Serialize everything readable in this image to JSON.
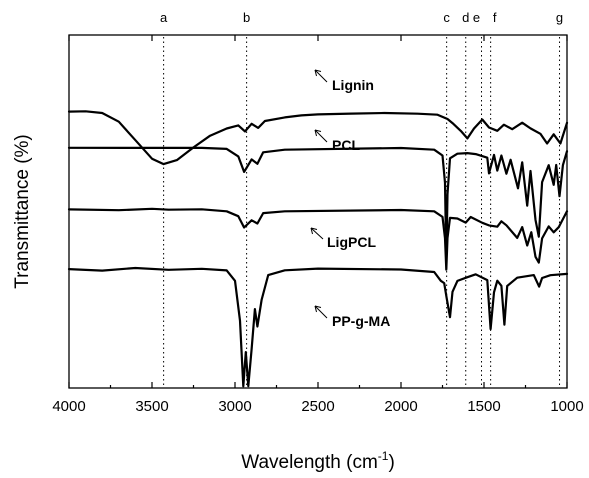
{
  "chart_data": {
    "type": "line",
    "xlabel": "Wavelength (cm",
    "xlabel_sup": "-1",
    "xlabel_close": ")",
    "ylabel": "Transmittance (%)",
    "xlim": [
      4000,
      1000
    ],
    "x_reversed": true,
    "xticks": [
      4000,
      3500,
      3000,
      2500,
      2000,
      1500,
      1000
    ],
    "y_ticks_shown": false,
    "grid": false,
    "legend": "none",
    "peak_markers": [
      {
        "label": "a",
        "x": 3430
      },
      {
        "label": "b",
        "x": 2930
      },
      {
        "label": "c",
        "x": 1725
      },
      {
        "label": "d",
        "x": 1610
      },
      {
        "label": "e",
        "x": 1515
      },
      {
        "label": "f",
        "x": 1460
      },
      {
        "label": "g",
        "x": 1045
      }
    ],
    "series": [
      {
        "name": "Lignin",
        "baseline": 0.96,
        "points": [
          [
            4000,
            0.0
          ],
          [
            3900,
            0.0
          ],
          [
            3800,
            0.03
          ],
          [
            3700,
            0.18
          ],
          [
            3600,
            0.5
          ],
          [
            3500,
            0.82
          ],
          [
            3430,
            0.92
          ],
          [
            3350,
            0.84
          ],
          [
            3250,
            0.62
          ],
          [
            3150,
            0.42
          ],
          [
            3050,
            0.3
          ],
          [
            2980,
            0.24
          ],
          [
            2940,
            0.34
          ],
          [
            2900,
            0.22
          ],
          [
            2860,
            0.28
          ],
          [
            2820,
            0.16
          ],
          [
            2700,
            0.1
          ],
          [
            2600,
            0.06
          ],
          [
            2500,
            0.04
          ],
          [
            2300,
            0.03
          ],
          [
            2100,
            0.03
          ],
          [
            1900,
            0.04
          ],
          [
            1780,
            0.06
          ],
          [
            1720,
            0.12
          ],
          [
            1690,
            0.2
          ],
          [
            1640,
            0.34
          ],
          [
            1600,
            0.46
          ],
          [
            1560,
            0.3
          ],
          [
            1510,
            0.14
          ],
          [
            1470,
            0.28
          ],
          [
            1420,
            0.34
          ],
          [
            1380,
            0.22
          ],
          [
            1330,
            0.3
          ],
          [
            1270,
            0.2
          ],
          [
            1220,
            0.3
          ],
          [
            1160,
            0.38
          ],
          [
            1120,
            0.56
          ],
          [
            1080,
            0.4
          ],
          [
            1040,
            0.55
          ],
          [
            1000,
            0.2
          ]
        ]
      },
      {
        "name": "PCL",
        "baseline": 1.6,
        "points": [
          [
            4000,
            0.0
          ],
          [
            3200,
            0.0
          ],
          [
            3050,
            0.02
          ],
          [
            2980,
            0.15
          ],
          [
            2945,
            0.42
          ],
          [
            2900,
            0.2
          ],
          [
            2865,
            0.28
          ],
          [
            2830,
            0.08
          ],
          [
            2700,
            0.02
          ],
          [
            2000,
            0.0
          ],
          [
            1800,
            0.02
          ],
          [
            1750,
            0.12
          ],
          [
            1735,
            0.6
          ],
          [
            1727,
            2.0
          ],
          [
            1720,
            0.8
          ],
          [
            1705,
            0.18
          ],
          [
            1660,
            0.1
          ],
          [
            1600,
            0.08
          ],
          [
            1550,
            0.1
          ],
          [
            1480,
            0.16
          ],
          [
            1470,
            0.45
          ],
          [
            1440,
            0.12
          ],
          [
            1420,
            0.4
          ],
          [
            1395,
            0.12
          ],
          [
            1365,
            0.45
          ],
          [
            1340,
            0.2
          ],
          [
            1295,
            0.7
          ],
          [
            1270,
            0.25
          ],
          [
            1240,
            1.0
          ],
          [
            1220,
            0.4
          ],
          [
            1190,
            1.25
          ],
          [
            1170,
            1.55
          ],
          [
            1150,
            0.6
          ],
          [
            1110,
            0.3
          ],
          [
            1080,
            0.65
          ],
          [
            1065,
            0.3
          ],
          [
            1045,
            0.85
          ],
          [
            1025,
            0.3
          ],
          [
            1000,
            0.05
          ]
        ]
      },
      {
        "name": "LigPCL",
        "baseline": 2.68,
        "points": [
          [
            4000,
            0.0
          ],
          [
            3700,
            0.0
          ],
          [
            3500,
            -0.02
          ],
          [
            3400,
            0.0
          ],
          [
            3200,
            0.0
          ],
          [
            3050,
            0.03
          ],
          [
            2980,
            0.12
          ],
          [
            2945,
            0.32
          ],
          [
            2900,
            0.18
          ],
          [
            2865,
            0.24
          ],
          [
            2830,
            0.06
          ],
          [
            2700,
            0.02
          ],
          [
            2000,
            0.0
          ],
          [
            1800,
            0.02
          ],
          [
            1750,
            0.12
          ],
          [
            1735,
            0.5
          ],
          [
            1727,
            1.05
          ],
          [
            1720,
            0.5
          ],
          [
            1705,
            0.15
          ],
          [
            1660,
            0.15
          ],
          [
            1610,
            0.22
          ],
          [
            1580,
            0.12
          ],
          [
            1510,
            0.22
          ],
          [
            1470,
            0.28
          ],
          [
            1420,
            0.3
          ],
          [
            1395,
            0.2
          ],
          [
            1365,
            0.28
          ],
          [
            1300,
            0.5
          ],
          [
            1270,
            0.3
          ],
          [
            1240,
            0.62
          ],
          [
            1215,
            0.4
          ],
          [
            1190,
            0.82
          ],
          [
            1170,
            0.92
          ],
          [
            1150,
            0.5
          ],
          [
            1110,
            0.3
          ],
          [
            1080,
            0.4
          ],
          [
            1050,
            0.3
          ],
          [
            1000,
            0.02
          ]
        ]
      },
      {
        "name": "PP-g-MA",
        "baseline": 3.72,
        "points": [
          [
            4000,
            0.0
          ],
          [
            3800,
            0.02
          ],
          [
            3600,
            -0.02
          ],
          [
            3400,
            0.02
          ],
          [
            3200,
            0.0
          ],
          [
            3050,
            0.02
          ],
          [
            3000,
            0.2
          ],
          [
            2970,
            0.9
          ],
          [
            2950,
            2.05
          ],
          [
            2935,
            1.45
          ],
          [
            2920,
            2.05
          ],
          [
            2900,
            1.4
          ],
          [
            2880,
            0.7
          ],
          [
            2865,
            1.0
          ],
          [
            2840,
            0.55
          ],
          [
            2800,
            0.1
          ],
          [
            2700,
            0.02
          ],
          [
            2500,
            0.0
          ],
          [
            2000,
            0.0
          ],
          [
            1800,
            0.05
          ],
          [
            1760,
            0.2
          ],
          [
            1740,
            0.25
          ],
          [
            1725,
            0.5
          ],
          [
            1705,
            0.85
          ],
          [
            1690,
            0.4
          ],
          [
            1660,
            0.2
          ],
          [
            1600,
            0.15
          ],
          [
            1550,
            0.1
          ],
          [
            1480,
            0.2
          ],
          [
            1460,
            1.05
          ],
          [
            1440,
            0.4
          ],
          [
            1420,
            0.2
          ],
          [
            1395,
            0.3
          ],
          [
            1377,
            0.98
          ],
          [
            1360,
            0.3
          ],
          [
            1300,
            0.15
          ],
          [
            1200,
            0.1
          ],
          [
            1168,
            0.3
          ],
          [
            1150,
            0.15
          ],
          [
            1100,
            0.1
          ],
          [
            1000,
            0.08
          ]
        ]
      }
    ]
  }
}
